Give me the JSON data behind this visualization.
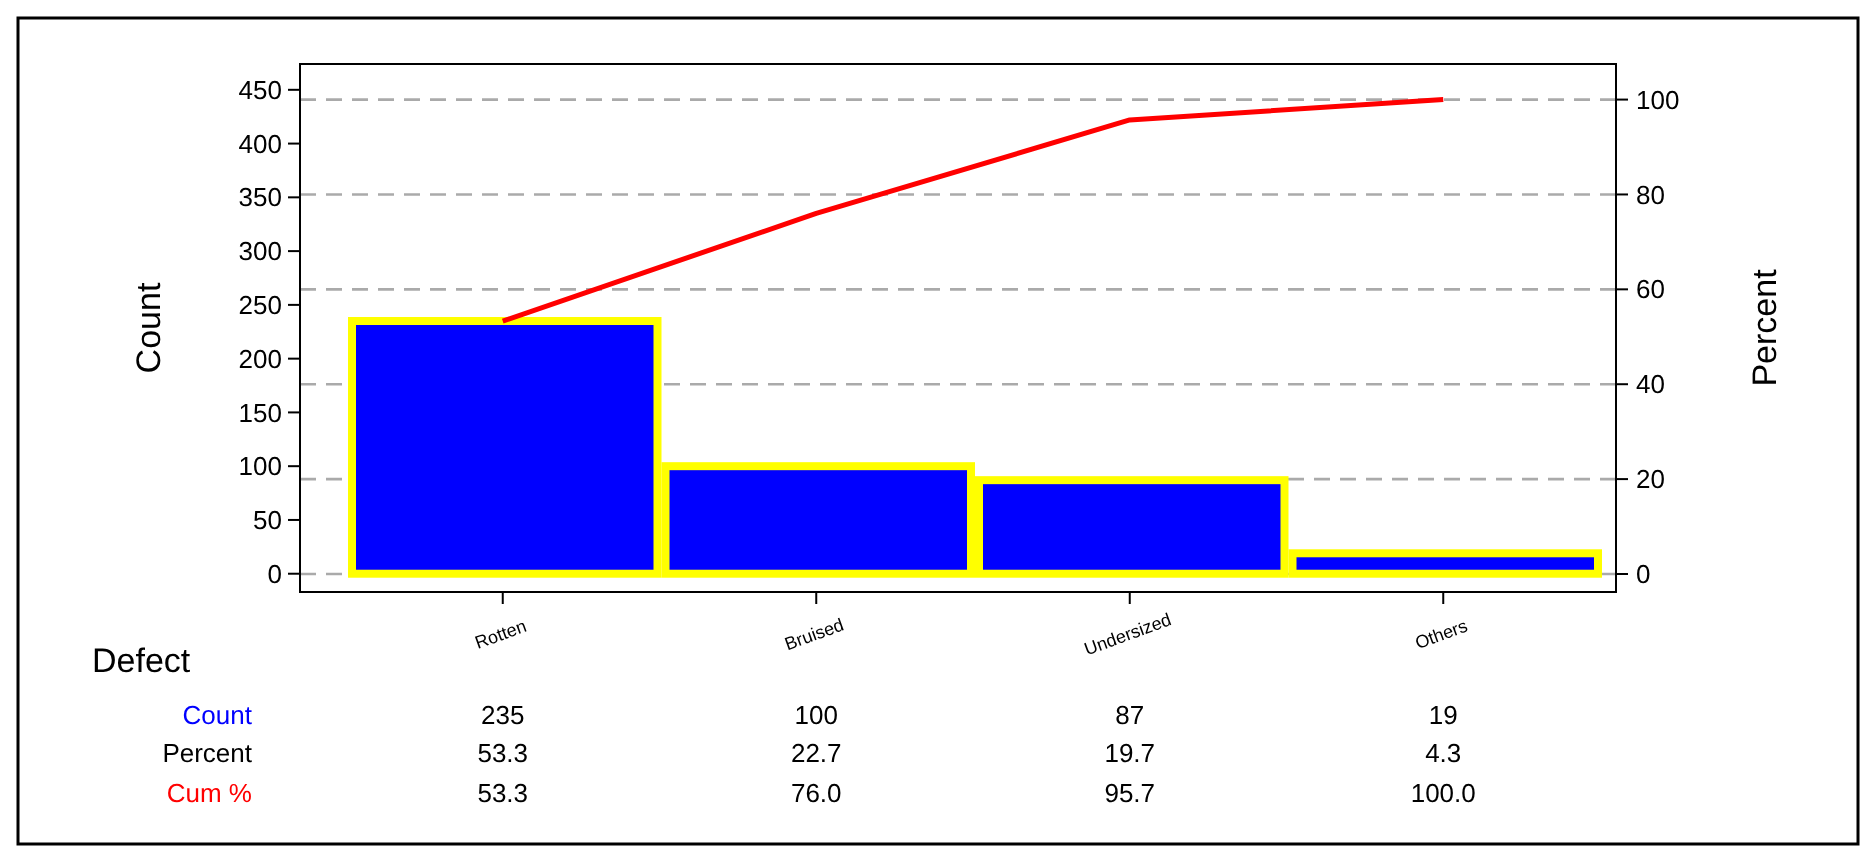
{
  "chart_data": {
    "type": "bar",
    "xlabel": "Defect",
    "ylabel": "Count",
    "y2label": "Percent",
    "categories": [
      "Rotten",
      "Bruised",
      "Undersized",
      "Others"
    ],
    "series": [
      {
        "name": "Count",
        "color": "#0000ff",
        "values": [
          235,
          100,
          87,
          19
        ],
        "value_labels": [
          "235",
          "100",
          "87",
          "19"
        ]
      },
      {
        "name": "Cum %",
        "type": "line",
        "axis": "y2",
        "color": "#ff0000",
        "values": [
          53.3,
          76.0,
          95.7,
          100.0
        ],
        "value_labels": [
          "53.3",
          "76.0",
          "95.7",
          "100.0"
        ]
      }
    ],
    "ylim": [
      -17,
      474
    ],
    "yticks": [
      0,
      50,
      100,
      150,
      200,
      250,
      300,
      350,
      400,
      450
    ],
    "y2lim": [
      -3.8,
      107.5
    ],
    "y2ticks": [
      0,
      20,
      40,
      60,
      80,
      100
    ],
    "annotations": [
      "Percent",
      "53.3",
      "22.7",
      "19.7",
      "4.3"
    ],
    "grid": "y",
    "legend": false,
    "marker": "none",
    "line_style": "solid"
  }
}
